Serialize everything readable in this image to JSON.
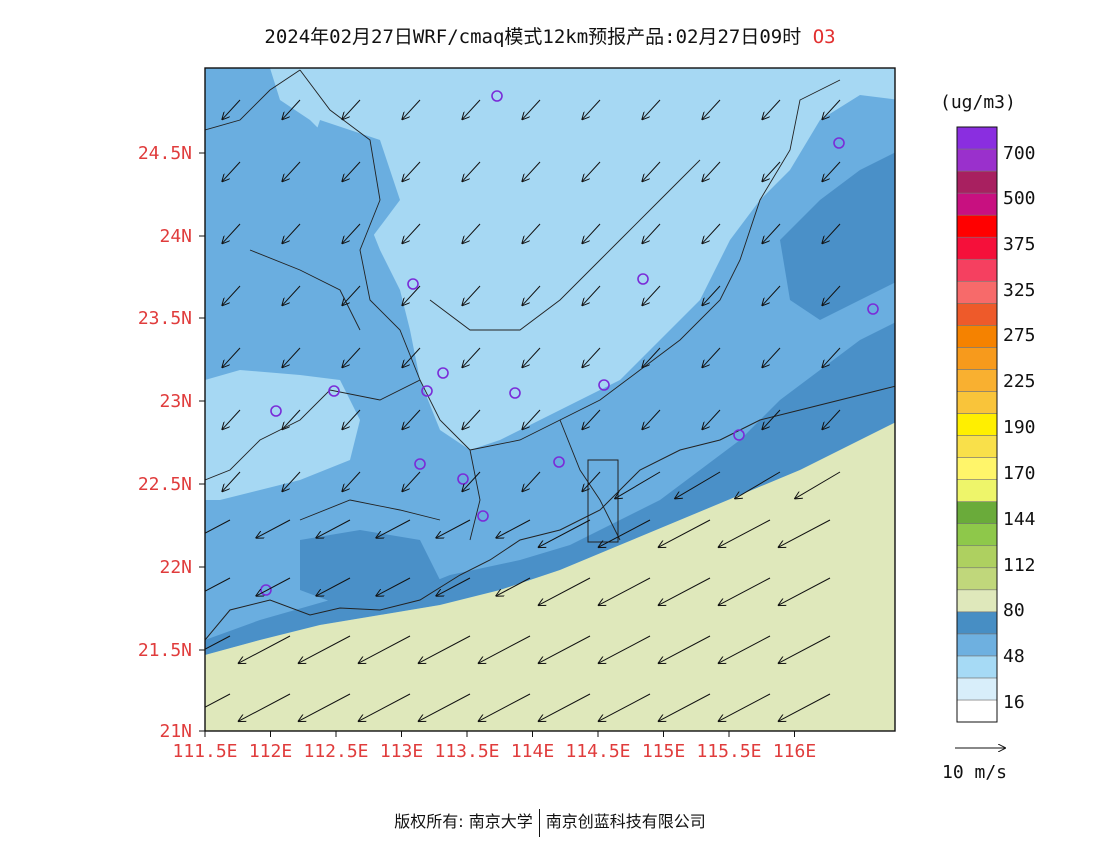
{
  "title": {
    "main": "2024年02月27日WRF/cmaq模式12km预报产品:02月27日09时",
    "species": "O3"
  },
  "map": {
    "lat_labels": [
      "24.5N",
      "24N",
      "23.5N",
      "23N",
      "22.5N",
      "22N",
      "21.5N",
      "21N"
    ],
    "lon_labels": [
      "111.5E",
      "112E",
      "112.5E",
      "113E",
      "113.5E",
      "114E",
      "114.5E",
      "115E",
      "115.5E",
      "116E"
    ],
    "colors": {
      "sea": "#dfe8bb",
      "light": "#a6d8f3",
      "mid": "#6aaee0",
      "dark": "#4a90c8"
    }
  },
  "legend": {
    "unit": "(ug/m3)",
    "labels": [
      "700",
      "500",
      "375",
      "325",
      "275",
      "225",
      "190",
      "170",
      "144",
      "112",
      "80",
      "48",
      "16"
    ],
    "colors": [
      "#ffffff",
      "#d8eefa",
      "#a6daf5",
      "#6eb0e0",
      "#478ec4",
      "#dfe8bb",
      "#c0d77b",
      "#aed060",
      "#8ec84a",
      "#6aab3a",
      "#eef56a",
      "#fff56a",
      "#f9e04a",
      "#ffef00",
      "#f9c43a",
      "#f9b030",
      "#f79a1c",
      "#f58200",
      "#ee5a2a",
      "#f76a6a",
      "#f54060",
      "#f5103a",
      "#ff0000",
      "#c81080",
      "#a82060",
      "#9a30cc",
      "#8a2ee0"
    ]
  },
  "wind_scale": {
    "label": "10 m/s"
  },
  "footer": {
    "left": "版权所有: 南京大学",
    "right": "南京创蓝科技有限公司"
  }
}
